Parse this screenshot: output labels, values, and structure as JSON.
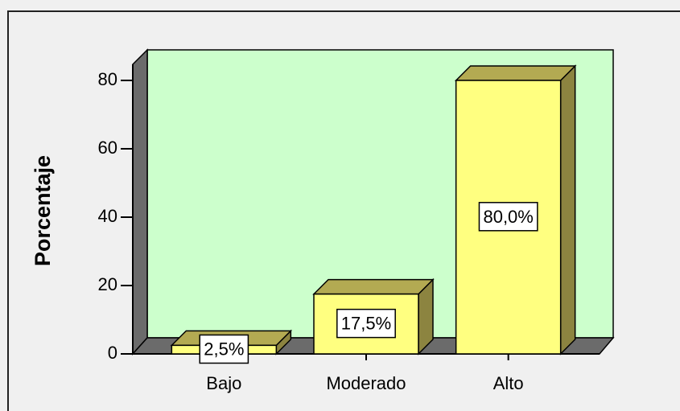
{
  "chart_data": {
    "type": "bar",
    "y_label": "Porcentaje",
    "categories": [
      "Bajo",
      "Moderado",
      "Alto"
    ],
    "values": [
      2.5,
      17.5,
      80
    ],
    "value_labels": [
      "2,5%",
      "17,5%",
      "80,0%"
    ],
    "color": "#ffff80",
    "ylim": [
      0,
      84.7
    ],
    "yticks": [
      0,
      20,
      40,
      60,
      80
    ]
  }
}
